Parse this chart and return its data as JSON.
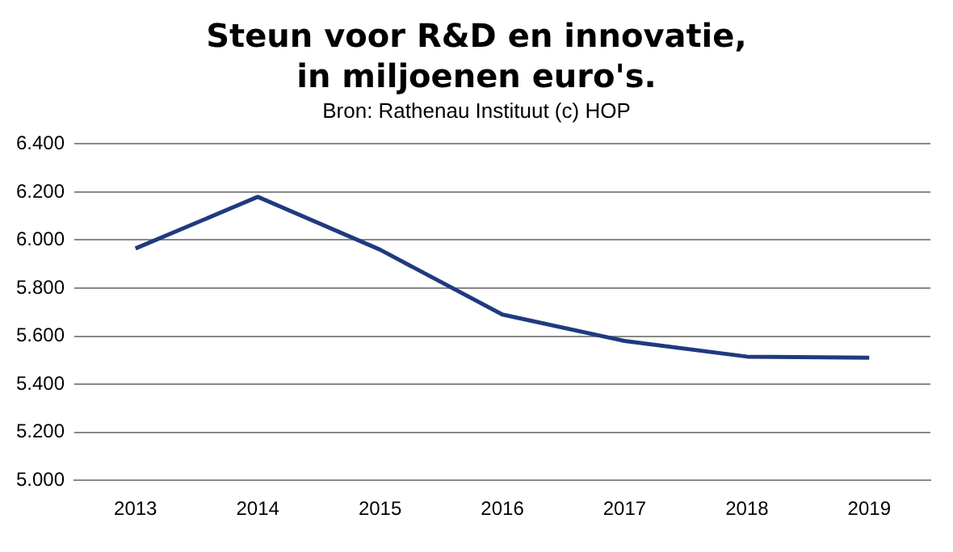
{
  "chart_data": {
    "type": "line",
    "title": "Steun voor R&D en innovatie,\nin miljoenen euro's.",
    "subtitle": "Bron: Rathenau Instituut (c) HOP",
    "categories": [
      "2013",
      "2014",
      "2015",
      "2016",
      "2017",
      "2018",
      "2019"
    ],
    "series": [
      {
        "color": "#203a80",
        "values": [
          5965,
          6180,
          5960,
          5690,
          5580,
          5515,
          5510
        ]
      }
    ],
    "ylim": [
      5000,
      6400
    ],
    "yticks": [
      {
        "value": 5000,
        "label": "5.000"
      },
      {
        "value": 5200,
        "label": "5.200"
      },
      {
        "value": 5400,
        "label": "5.400"
      },
      {
        "value": 5600,
        "label": "5.600"
      },
      {
        "value": 5800,
        "label": "5.800"
      },
      {
        "value": 6000,
        "label": "6.000"
      },
      {
        "value": 6200,
        "label": "6.200"
      },
      {
        "value": 6400,
        "label": "6.400"
      }
    ],
    "grid": "y",
    "legend": false,
    "marker": "none",
    "line_style": "solid"
  }
}
